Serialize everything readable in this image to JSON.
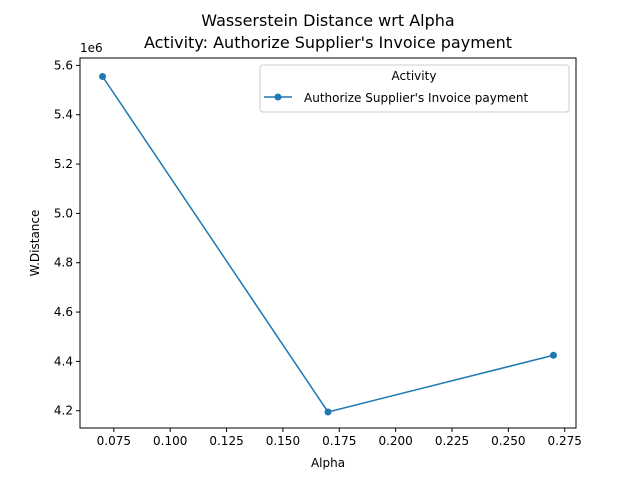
{
  "chart_data": {
    "type": "line",
    "title": "Wasserstein Distance wrt Alpha",
    "subtitle": "Activity: Authorize Supplier's Invoice payment",
    "xlabel": "Alpha",
    "ylabel": "W.Distance",
    "y_offset_label": "1e6",
    "xlim": [
      0.06,
      0.28
    ],
    "ylim": [
      4.13,
      5.63
    ],
    "x_ticks": [
      0.075,
      0.1,
      0.125,
      0.15,
      0.175,
      0.2,
      0.225,
      0.25,
      0.275
    ],
    "x_tick_labels": [
      "0.075",
      "0.100",
      "0.125",
      "0.150",
      "0.175",
      "0.200",
      "0.225",
      "0.250",
      "0.275"
    ],
    "y_ticks": [
      4.2,
      4.4,
      4.6,
      4.8,
      5.0,
      5.2,
      5.4,
      5.6
    ],
    "y_tick_labels": [
      "4.2",
      "4.4",
      "4.6",
      "4.8",
      "5.0",
      "5.2",
      "5.4",
      "5.6"
    ],
    "legend": {
      "title": "Activity",
      "position": "top-right"
    },
    "grid": false,
    "series": [
      {
        "name": "Authorize Supplier's Invoice payment",
        "color": "#1f77b4",
        "marker": "circle",
        "x": [
          0.07,
          0.17,
          0.27
        ],
        "y": [
          5.555,
          4.195,
          4.425
        ]
      }
    ]
  }
}
